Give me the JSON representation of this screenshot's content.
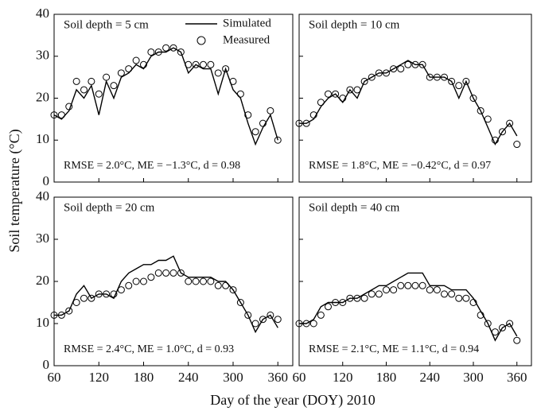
{
  "ylabel": "Soil temperature (°C)",
  "xlabel": "Day of the year (DOY) 2010",
  "chart_data": [
    {
      "type": "line",
      "title": "Soil depth = 5 cm",
      "annotation": "RMSE = 2.0°C, ME = −1.3°C, d = 0.98",
      "x": [
        60,
        70,
        80,
        90,
        100,
        110,
        120,
        130,
        140,
        150,
        160,
        170,
        180,
        190,
        200,
        210,
        220,
        230,
        240,
        250,
        260,
        270,
        280,
        290,
        300,
        310,
        320,
        330,
        340,
        350,
        360
      ],
      "series": [
        {
          "name": "Simulated",
          "style": "line",
          "color": "#000000",
          "values": [
            16,
            15,
            17,
            22,
            20,
            23,
            16,
            24,
            20,
            25,
            26,
            28,
            27,
            30,
            31,
            31,
            32,
            31,
            26,
            28,
            27,
            27,
            21,
            27,
            22,
            20,
            14,
            9,
            13,
            16,
            10
          ]
        },
        {
          "name": "Measured",
          "style": "scatter",
          "color": "#000000",
          "values": [
            16,
            16,
            18,
            24,
            22,
            24,
            21,
            25,
            23,
            26,
            27,
            29,
            28,
            31,
            31,
            32,
            32,
            31,
            28,
            28,
            28,
            28,
            26,
            27,
            24,
            21,
            16,
            12,
            14,
            17,
            10
          ]
        }
      ],
      "xlim": [
        60,
        380
      ],
      "xticks": [
        60,
        120,
        180,
        240,
        300,
        360
      ],
      "ylim": [
        0,
        40
      ],
      "yticks": [
        0,
        10,
        20,
        30,
        40
      ],
      "show_xtick_labels": false,
      "show_ytick_labels": true,
      "legend": "top-right"
    },
    {
      "type": "line",
      "title": "Soil depth = 10 cm",
      "annotation": "RMSE = 1.8°C, ME = −0.42°C, d = 0.97",
      "x": [
        60,
        70,
        80,
        90,
        100,
        110,
        120,
        130,
        140,
        150,
        160,
        170,
        180,
        190,
        200,
        210,
        220,
        230,
        240,
        250,
        260,
        270,
        280,
        290,
        300,
        310,
        320,
        330,
        340,
        350,
        360
      ],
      "series": [
        {
          "name": "Simulated",
          "style": "line",
          "color": "#000000",
          "values": [
            14,
            14,
            15,
            18,
            20,
            21,
            19,
            22,
            20,
            24,
            25,
            26,
            26,
            27,
            28,
            29,
            28,
            28,
            25,
            25,
            25,
            24,
            20,
            24,
            20,
            17,
            13,
            9,
            12,
            14,
            11
          ]
        },
        {
          "name": "Measured",
          "style": "scatter",
          "color": "#000000",
          "values": [
            14,
            14,
            16,
            19,
            21,
            21,
            20,
            22,
            22,
            24,
            25,
            26,
            26,
            27,
            27,
            28,
            28,
            28,
            25,
            25,
            25,
            24,
            23,
            24,
            20,
            17,
            15,
            10,
            12,
            14,
            9
          ]
        }
      ],
      "xlim": [
        60,
        380
      ],
      "xticks": [
        60,
        120,
        180,
        240,
        300,
        360
      ],
      "ylim": [
        0,
        40
      ],
      "yticks": [
        0,
        10,
        20,
        30,
        40
      ],
      "show_xtick_labels": false,
      "show_ytick_labels": false
    },
    {
      "type": "line",
      "title": "Soil depth = 20 cm",
      "annotation": "RMSE = 2.4°C, ME = 1.0°C, d = 0.93",
      "x": [
        60,
        70,
        80,
        90,
        100,
        110,
        120,
        130,
        140,
        150,
        160,
        170,
        180,
        190,
        200,
        210,
        220,
        230,
        240,
        250,
        260,
        270,
        280,
        290,
        300,
        310,
        320,
        330,
        340,
        350,
        360
      ],
      "series": [
        {
          "name": "Simulated",
          "style": "line",
          "color": "#000000",
          "values": [
            12,
            12,
            13,
            17,
            19,
            16,
            17,
            17,
            16,
            20,
            22,
            23,
            24,
            24,
            25,
            25,
            26,
            22,
            21,
            21,
            21,
            21,
            20,
            20,
            18,
            15,
            12,
            8,
            11,
            12,
            9
          ]
        },
        {
          "name": "Measured",
          "style": "scatter",
          "color": "#000000",
          "values": [
            12,
            12,
            13,
            15,
            16,
            16,
            17,
            17,
            17,
            18,
            19,
            20,
            20,
            21,
            22,
            22,
            22,
            22,
            20,
            20,
            20,
            20,
            19,
            19,
            18,
            15,
            12,
            10,
            11,
            12,
            11
          ]
        }
      ],
      "xlim": [
        60,
        380
      ],
      "xticks": [
        60,
        120,
        180,
        240,
        300,
        360
      ],
      "ylim": [
        0,
        40
      ],
      "yticks": [
        0,
        10,
        20,
        30,
        40
      ],
      "show_xtick_labels": true,
      "show_ytick_labels": true
    },
    {
      "type": "line",
      "title": "Soil depth = 40 cm",
      "annotation": "RMSE = 2.1°C, ME = 1.1°C, d = 0.94",
      "x": [
        60,
        70,
        80,
        90,
        100,
        110,
        120,
        130,
        140,
        150,
        160,
        170,
        180,
        190,
        200,
        210,
        220,
        230,
        240,
        250,
        260,
        270,
        280,
        290,
        300,
        310,
        320,
        330,
        340,
        350,
        360
      ],
      "series": [
        {
          "name": "Simulated",
          "style": "line",
          "color": "#000000",
          "values": [
            10,
            10,
            11,
            14,
            15,
            15,
            15,
            16,
            16,
            17,
            18,
            19,
            19,
            20,
            21,
            22,
            22,
            22,
            19,
            19,
            19,
            18,
            18,
            18,
            16,
            13,
            10,
            6,
            9,
            10,
            7
          ]
        },
        {
          "name": "Measured",
          "style": "scatter",
          "color": "#000000",
          "values": [
            10,
            10,
            10,
            12,
            14,
            15,
            15,
            16,
            16,
            16,
            17,
            17,
            18,
            18,
            19,
            19,
            19,
            19,
            18,
            18,
            17,
            17,
            16,
            16,
            15,
            12,
            10,
            8,
            9,
            10,
            6
          ]
        }
      ],
      "xlim": [
        60,
        380
      ],
      "xticks": [
        60,
        120,
        180,
        240,
        300,
        360
      ],
      "ylim": [
        0,
        40
      ],
      "yticks": [
        0,
        10,
        20,
        30,
        40
      ],
      "show_xtick_labels": true,
      "show_ytick_labels": false
    }
  ]
}
